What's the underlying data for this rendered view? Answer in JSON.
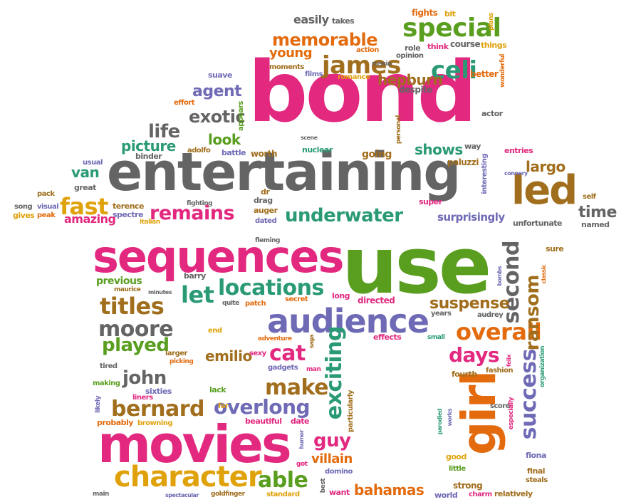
{
  "cloud": {
    "colors": {
      "pink": "#e2287f",
      "gray": "#646464",
      "green": "#5a9e1f",
      "orange": "#e36b0e",
      "gold": "#e0a20b",
      "brown": "#a06e1c",
      "purple": "#6f6ab5",
      "teal": "#2a9a76",
      "light_gray": "#8a8a8a"
    },
    "words": [
      "bond",
      "entertaining",
      "use",
      "sequences",
      "movies",
      "girl",
      "led",
      "character",
      "audience",
      "special",
      "james",
      "celi",
      "memorable",
      "remains",
      "underwater",
      "fast",
      "locations",
      "titles",
      "exciting",
      "overlong",
      "bernard",
      "make",
      "overall",
      "moore",
      "let",
      "played",
      "days",
      "success",
      "cat",
      "ransom",
      "second",
      "suspense",
      "bahamas",
      "able",
      "guy",
      "john",
      "emilio",
      "villain",
      "life",
      "exotic",
      "agent",
      "picture",
      "look",
      "hepburn",
      "young",
      "shows",
      "largo",
      "van",
      "time",
      "surprisingly",
      "amazing",
      "gives",
      "fighting",
      "fights",
      "takes",
      "easily",
      "action",
      "role",
      "opinion",
      "think",
      "course",
      "things",
      "plans",
      "bit",
      "wonderful",
      "better",
      "russia",
      "romance",
      "films",
      "moments",
      "suave",
      "despite",
      "effort",
      "appears",
      "actor",
      "personal",
      "scene",
      "way",
      "entries",
      "connery",
      "paluzzi",
      "interesting",
      "going",
      "nuclear",
      "worth",
      "battle",
      "adolfo",
      "binder",
      "usual",
      "great",
      "pack",
      "song",
      "visual",
      "peak",
      "terence",
      "spectre",
      "italian",
      "dr",
      "drag",
      "auger",
      "dated",
      "super",
      "unfortunate",
      "self",
      "named",
      "fleming",
      "barry",
      "previous",
      "maurice",
      "minutes",
      "quite",
      "patch",
      "secret",
      "long",
      "directed",
      "years",
      "audrey",
      "sure",
      "bombs",
      "classic",
      "end",
      "adventure",
      "saga",
      "effects",
      "small",
      "felix",
      "larger",
      "sexy",
      "picking",
      "tired",
      "gadgets",
      "man",
      "fourth",
      "fashion",
      "organization",
      "making",
      "sixties",
      "liners",
      "lack",
      "likely",
      "far",
      "particularly",
      "score",
      "works",
      "parodied",
      "especially",
      "probably",
      "browning",
      "beautiful",
      "date",
      "humor",
      "good",
      "fiona",
      "little",
      "final",
      "steals",
      "got",
      "domino",
      "strong",
      "charm",
      "relatively",
      "main",
      "spectacular",
      "goldfinger",
      "standard",
      "best",
      "want",
      "world"
    ]
  }
}
